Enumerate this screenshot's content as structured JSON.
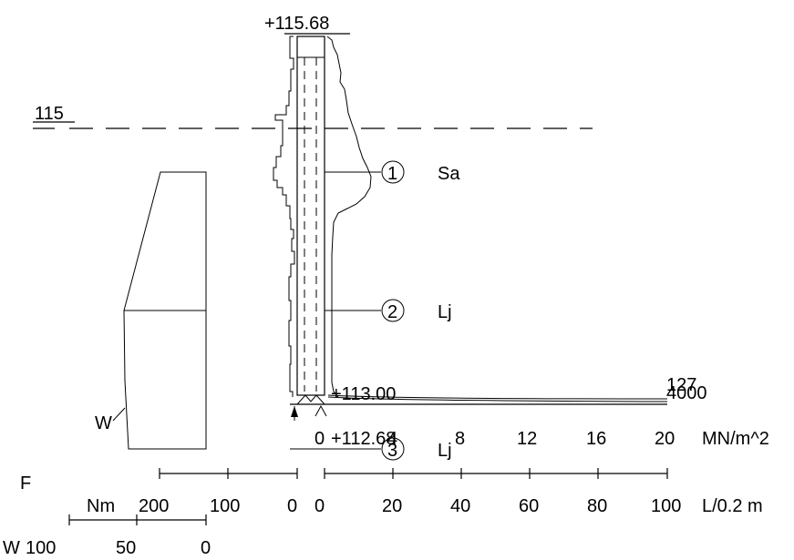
{
  "elevations": {
    "top": "+115.68",
    "water_level": "115",
    "ground": "+113.00",
    "bottom": "+112.68"
  },
  "layers": [
    {
      "number": "1",
      "soil": "Sa"
    },
    {
      "number": "2",
      "soil": "Lj"
    },
    {
      "number": "3",
      "soil": "Lj"
    }
  ],
  "markers": {
    "w_curve": "W",
    "f_axis": "F",
    "w_axis": "W"
  },
  "end_values": {
    "a": "127",
    "b": "4000"
  },
  "axes": {
    "pressure": {
      "ticks": [
        "0",
        "4",
        "8",
        "12",
        "16",
        "20"
      ],
      "unit": "MN/m^2"
    },
    "force_left": {
      "ticks": [
        "200",
        "100",
        "0"
      ],
      "unit": "Nm"
    },
    "force_right": {
      "ticks": [
        "0",
        "20",
        "40",
        "60",
        "80",
        "100"
      ],
      "unit": "L/0.2 m"
    },
    "weight": {
      "ticks": [
        "100",
        "50",
        "0"
      ]
    }
  }
}
